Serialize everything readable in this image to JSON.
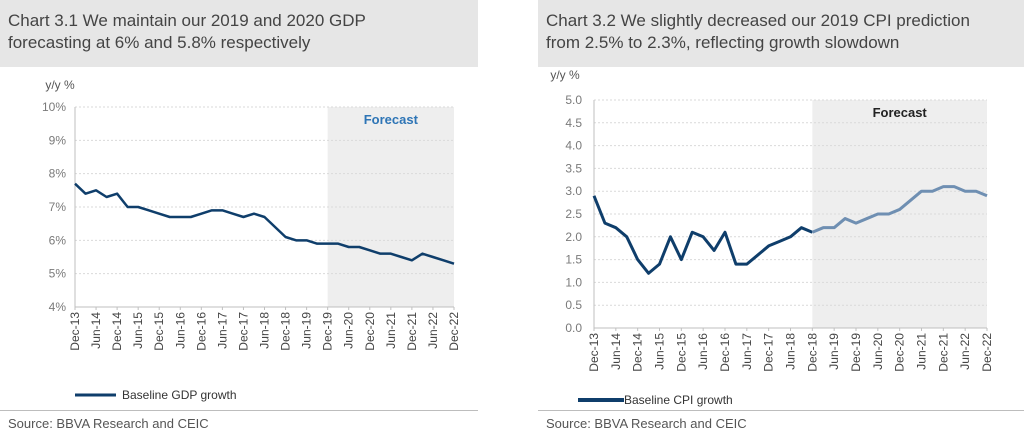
{
  "chart_data": [
    {
      "type": "line",
      "title": "Chart 3.1 We maintain our 2019 and 2020 GDP forecasting at 6% and 5.8% respectively",
      "title_lines": [
        "Chart 3.1 We maintain our 2019 and 2020 GDP",
        "forecasting at 6% and 5.8% respectively"
      ],
      "ylabel": "y/y %",
      "ylim": [
        4,
        10
      ],
      "yticks": [
        "4%",
        "5%",
        "6%",
        "7%",
        "8%",
        "9%",
        "10%"
      ],
      "grid": true,
      "x": [
        "Dec-13",
        "Mar-14",
        "Jun-14",
        "Sep-14",
        "Dec-14",
        "Mar-15",
        "Jun-15",
        "Sep-15",
        "Dec-15",
        "Mar-16",
        "Jun-16",
        "Sep-16",
        "Dec-16",
        "Mar-17",
        "Jun-17",
        "Sep-17",
        "Dec-17",
        "Mar-18",
        "Jun-18",
        "Sep-18",
        "Dec-18",
        "Mar-19",
        "Jun-19",
        "Sep-19",
        "Dec-19",
        "Mar-20",
        "Jun-20",
        "Sep-20",
        "Dec-20",
        "Mar-21",
        "Jun-21",
        "Sep-21",
        "Dec-21",
        "Mar-22",
        "Jun-22",
        "Sep-22",
        "Dec-22"
      ],
      "xticks": [
        "Dec-13",
        "Jun-14",
        "Dec-14",
        "Jun-15",
        "Dec-15",
        "Jun-16",
        "Dec-16",
        "Jun-17",
        "Dec-17",
        "Jun-18",
        "Dec-18",
        "Jun-19",
        "Dec-19",
        "Jun-20",
        "Dec-20",
        "Jun-21",
        "Dec-21",
        "Jun-22",
        "Dec-22"
      ],
      "forecast_start": "Dec-19",
      "forecast_label": "Forecast",
      "series": [
        {
          "name": "Baseline GDP growth",
          "color": "#0f3e6b",
          "values": [
            7.7,
            7.4,
            7.5,
            7.3,
            7.4,
            7.0,
            7.0,
            6.9,
            6.8,
            6.7,
            6.7,
            6.7,
            6.8,
            6.9,
            6.9,
            6.8,
            6.7,
            6.8,
            6.7,
            6.4,
            6.1,
            6.0,
            6.0,
            5.9,
            5.9,
            5.9,
            5.8,
            5.8,
            5.7,
            5.6,
            5.6,
            5.5,
            5.4,
            5.6,
            5.5,
            5.4,
            5.3
          ]
        }
      ],
      "source": "Source: BBVA Research and CEIC"
    },
    {
      "type": "line",
      "title": "Chart 3.2 We slightly decreased our 2019 CPI prediction from 2.5% to 2.3%, reflecting growth slowdown",
      "title_lines": [
        "Chart 3.2 We slightly decreased our 2019 CPI prediction",
        "from 2.5% to 2.3%, reflecting growth slowdown"
      ],
      "ylabel": "y/y %",
      "ylim": [
        0,
        5
      ],
      "yticks": [
        "0.0",
        "0.5",
        "1.0",
        "1.5",
        "2.0",
        "2.5",
        "3.0",
        "3.5",
        "4.0",
        "4.5",
        "5.0"
      ],
      "grid": true,
      "x": [
        "Dec-13",
        "Mar-14",
        "Jun-14",
        "Sep-14",
        "Dec-14",
        "Mar-15",
        "Jun-15",
        "Sep-15",
        "Dec-15",
        "Mar-16",
        "Jun-16",
        "Sep-16",
        "Dec-16",
        "Mar-17",
        "Jun-17",
        "Sep-17",
        "Dec-17",
        "Mar-18",
        "Jun-18",
        "Sep-18",
        "Dec-18",
        "Mar-19",
        "Jun-19",
        "Sep-19",
        "Dec-19",
        "Mar-20",
        "Jun-20",
        "Sep-20",
        "Dec-20",
        "Mar-21",
        "Jun-21",
        "Sep-21",
        "Dec-21",
        "Mar-22",
        "Jun-22",
        "Sep-22",
        "Dec-22"
      ],
      "xticks": [
        "Dec-13",
        "Jun-14",
        "Dec-14",
        "Jun-15",
        "Dec-15",
        "Jun-16",
        "Dec-16",
        "Jun-17",
        "Dec-17",
        "Jun-18",
        "Dec-18",
        "Jun-19",
        "Dec-19",
        "Jun-20",
        "Dec-20",
        "Jun-21",
        "Dec-21",
        "Jun-22",
        "Dec-22"
      ],
      "forecast_start": "Dec-18",
      "forecast_label": "Forecast",
      "forecast_color": "#6f8fb2",
      "series": [
        {
          "name": "Baseline CPI growth",
          "color": "#0f3e6b",
          "values": [
            2.9,
            2.3,
            2.2,
            2.0,
            1.5,
            1.2,
            1.4,
            2.0,
            1.5,
            2.1,
            2.0,
            1.7,
            2.1,
            1.4,
            1.4,
            1.6,
            1.8,
            1.9,
            2.0,
            2.2,
            2.1,
            2.2,
            2.2,
            2.4,
            2.3,
            2.4,
            2.5,
            2.5,
            2.6,
            2.8,
            3.0,
            3.0,
            3.1,
            3.1,
            3.0,
            3.0,
            2.9
          ]
        }
      ],
      "source": "Source: BBVA Research and CEIC"
    }
  ]
}
